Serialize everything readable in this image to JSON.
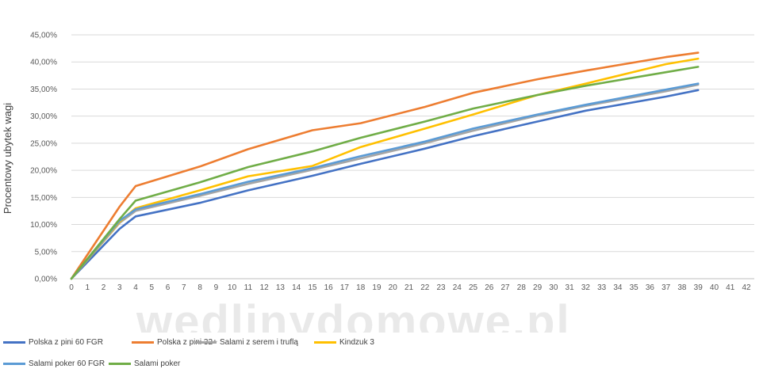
{
  "watermark": "wedlinydomowe.pl",
  "chart_data": {
    "type": "line",
    "title": "",
    "xlabel": "",
    "ylabel": "Procentowy ubytek wagi",
    "x_ticks": [
      0,
      1,
      2,
      3,
      4,
      5,
      6,
      7,
      8,
      9,
      10,
      11,
      12,
      13,
      14,
      15,
      16,
      17,
      18,
      19,
      20,
      21,
      22,
      23,
      24,
      25,
      26,
      27,
      28,
      29,
      30,
      31,
      32,
      33,
      34,
      35,
      36,
      37,
      38,
      39,
      40,
      41,
      42
    ],
    "y_ticks": [
      "0,00%",
      "5,00%",
      "10,00%",
      "15,00%",
      "20,00%",
      "25,00%",
      "30,00%",
      "35,00%",
      "40,00%",
      "45,00%"
    ],
    "xlim": [
      0,
      42
    ],
    "ylim": [
      0,
      45
    ],
    "grid": "horizontal",
    "legend_position": "bottom",
    "series": [
      {
        "name": "Polska z pini 60 FGR",
        "color": "#4472c4",
        "points": [
          [
            0,
            0
          ],
          [
            3,
            9.2
          ],
          [
            4,
            11.5
          ],
          [
            8,
            14.0
          ],
          [
            11,
            16.3
          ],
          [
            15,
            19.0
          ],
          [
            18,
            21.2
          ],
          [
            22,
            24.0
          ],
          [
            25,
            26.3
          ],
          [
            29,
            29.0
          ],
          [
            32,
            31.0
          ],
          [
            37,
            33.6
          ],
          [
            39,
            34.8
          ]
        ]
      },
      {
        "name": "Polska z pini 32+",
        "color": "#ed7d31",
        "points": [
          [
            0,
            0
          ],
          [
            3,
            13.3
          ],
          [
            4,
            17.1
          ],
          [
            8,
            20.7
          ],
          [
            11,
            23.9
          ],
          [
            15,
            27.4
          ],
          [
            18,
            28.7
          ],
          [
            22,
            31.7
          ],
          [
            25,
            34.3
          ],
          [
            29,
            36.8
          ],
          [
            32,
            38.4
          ],
          [
            37,
            40.9
          ],
          [
            39,
            41.7
          ]
        ]
      },
      {
        "name": "Salami z serem i truflą",
        "color": "#a5a5a5",
        "points": [
          [
            0,
            0
          ],
          [
            3,
            10.3
          ],
          [
            4,
            12.5
          ],
          [
            8,
            15.3
          ],
          [
            11,
            17.5
          ],
          [
            15,
            20.1
          ],
          [
            18,
            22.2
          ],
          [
            22,
            25.0
          ],
          [
            25,
            27.3
          ],
          [
            29,
            30.1
          ],
          [
            32,
            31.9
          ],
          [
            37,
            34.6
          ],
          [
            39,
            35.8
          ]
        ]
      },
      {
        "name": "Kindzuk 3",
        "color": "#ffc000",
        "points": [
          [
            0,
            0
          ],
          [
            3,
            10.5
          ],
          [
            4,
            13.0
          ],
          [
            8,
            16.3
          ],
          [
            11,
            18.9
          ],
          [
            15,
            20.8
          ],
          [
            18,
            24.3
          ],
          [
            22,
            27.7
          ],
          [
            25,
            30.3
          ],
          [
            29,
            33.9
          ],
          [
            32,
            36.0
          ],
          [
            37,
            39.6
          ],
          [
            39,
            40.6
          ]
        ]
      },
      {
        "name": "Salami poker 60 FGR",
        "color": "#5b9bd5",
        "points": [
          [
            0,
            0
          ],
          [
            3,
            10.7
          ],
          [
            4,
            12.8
          ],
          [
            8,
            15.6
          ],
          [
            11,
            17.9
          ],
          [
            15,
            20.4
          ],
          [
            18,
            22.6
          ],
          [
            22,
            25.3
          ],
          [
            25,
            27.7
          ],
          [
            29,
            30.3
          ],
          [
            32,
            32.1
          ],
          [
            37,
            34.9
          ],
          [
            39,
            36.0
          ]
        ]
      },
      {
        "name": "Salami poker",
        "color": "#70ad47",
        "points": [
          [
            0,
            0
          ],
          [
            3,
            11.0
          ],
          [
            4,
            14.4
          ],
          [
            8,
            17.8
          ],
          [
            11,
            20.6
          ],
          [
            15,
            23.5
          ],
          [
            18,
            26.0
          ],
          [
            22,
            29.0
          ],
          [
            25,
            31.4
          ],
          [
            29,
            33.9
          ],
          [
            32,
            35.6
          ],
          [
            37,
            38.1
          ],
          [
            39,
            39.1
          ]
        ]
      }
    ]
  }
}
